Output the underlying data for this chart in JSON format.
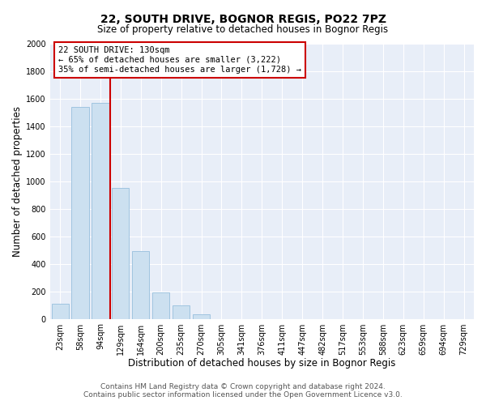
{
  "title": "22, SOUTH DRIVE, BOGNOR REGIS, PO22 7PZ",
  "subtitle": "Size of property relative to detached houses in Bognor Regis",
  "xlabel": "Distribution of detached houses by size in Bognor Regis",
  "ylabel": "Number of detached properties",
  "bar_labels": [
    "23sqm",
    "58sqm",
    "94sqm",
    "129sqm",
    "164sqm",
    "200sqm",
    "235sqm",
    "270sqm",
    "305sqm",
    "341sqm",
    "376sqm",
    "411sqm",
    "447sqm",
    "482sqm",
    "517sqm",
    "553sqm",
    "588sqm",
    "623sqm",
    "659sqm",
    "694sqm",
    "729sqm"
  ],
  "bar_values": [
    110,
    1540,
    1570,
    950,
    490,
    190,
    100,
    35,
    0,
    0,
    0,
    0,
    0,
    0,
    0,
    0,
    0,
    0,
    0,
    0,
    0
  ],
  "bar_color": "#cce0f0",
  "bar_edge_color": "#a0c4e0",
  "marker_label": "22 SOUTH DRIVE: 130sqm",
  "annotation_line1": "← 65% of detached houses are smaller (3,222)",
  "annotation_line2": "35% of semi-detached houses are larger (1,728) →",
  "annotation_box_color": "#ffffff",
  "annotation_box_edge_color": "#cc0000",
  "marker_line_color": "#cc0000",
  "ylim": [
    0,
    2000
  ],
  "yticks": [
    0,
    200,
    400,
    600,
    800,
    1000,
    1200,
    1400,
    1600,
    1800,
    2000
  ],
  "footer_line1": "Contains HM Land Registry data © Crown copyright and database right 2024.",
  "footer_line2": "Contains public sector information licensed under the Open Government Licence v3.0.",
  "title_fontsize": 10,
  "subtitle_fontsize": 8.5,
  "xlabel_fontsize": 8.5,
  "ylabel_fontsize": 8.5,
  "tick_fontsize": 7,
  "footer_fontsize": 6.5,
  "annotation_fontsize": 7.5,
  "bg_color": "#e8eef8"
}
